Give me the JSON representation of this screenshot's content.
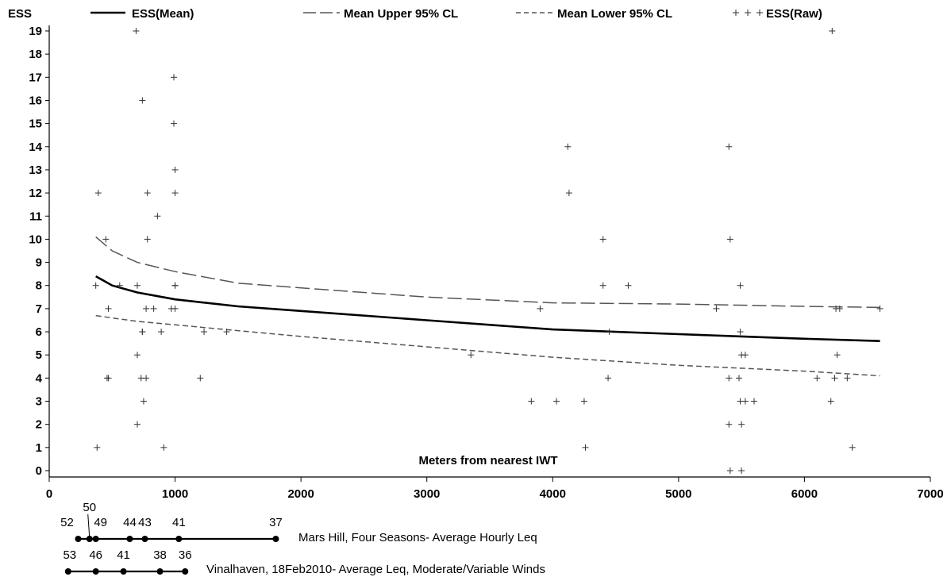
{
  "chart_data": {
    "type": "line",
    "y_axis_title": "ESS",
    "x_axis_label": "Meters from nearest IWT",
    "xlim": [
      0,
      7000
    ],
    "ylim": [
      0,
      19
    ],
    "x_ticks": [
      0,
      1000,
      2000,
      3000,
      4000,
      5000,
      6000,
      7000
    ],
    "y_ticks": [
      0,
      1,
      2,
      3,
      4,
      5,
      6,
      7,
      8,
      9,
      10,
      11,
      12,
      13,
      14,
      15,
      16,
      17,
      18,
      19
    ],
    "grid": false,
    "legend_position": "top",
    "series": [
      {
        "name": "ESS(Mean)",
        "style": "solid",
        "color": "#000000",
        "x": [
          370,
          500,
          700,
          1000,
          1500,
          2000,
          3000,
          4000,
          5000,
          5500,
          6000,
          6600
        ],
        "y": [
          8.4,
          8.0,
          7.7,
          7.4,
          7.1,
          6.9,
          6.5,
          6.1,
          5.9,
          5.8,
          5.7,
          5.6
        ]
      },
      {
        "name": "Mean Upper 95% CL",
        "style": "long-dash",
        "color": "#555555",
        "x": [
          370,
          500,
          700,
          1000,
          1500,
          2000,
          3000,
          4000,
          5000,
          6000,
          6600
        ],
        "y": [
          10.1,
          9.5,
          9.0,
          8.6,
          8.1,
          7.9,
          7.5,
          7.25,
          7.2,
          7.1,
          7.05
        ]
      },
      {
        "name": "Mean Lower 95% CL",
        "style": "short-dash",
        "color": "#555555",
        "x": [
          370,
          500,
          700,
          1000,
          1500,
          2000,
          3000,
          4000,
          5000,
          6000,
          6600
        ],
        "y": [
          6.7,
          6.6,
          6.45,
          6.3,
          6.05,
          5.8,
          5.35,
          4.9,
          4.55,
          4.3,
          4.1
        ]
      },
      {
        "name": "ESS(Raw)",
        "style": "points",
        "color": "#333333",
        "points": [
          [
            370,
            8
          ],
          [
            380,
            1
          ],
          [
            390,
            12
          ],
          [
            450,
            10
          ],
          [
            460,
            4
          ],
          [
            470,
            4
          ],
          [
            470,
            7
          ],
          [
            560,
            8
          ],
          [
            690,
            19
          ],
          [
            700,
            8
          ],
          [
            700,
            5
          ],
          [
            700,
            2
          ],
          [
            730,
            4
          ],
          [
            740,
            16
          ],
          [
            740,
            6
          ],
          [
            740,
            6
          ],
          [
            750,
            3
          ],
          [
            770,
            4
          ],
          [
            770,
            7
          ],
          [
            780,
            12
          ],
          [
            780,
            10
          ],
          [
            830,
            7
          ],
          [
            860,
            11
          ],
          [
            890,
            6
          ],
          [
            910,
            1
          ],
          [
            970,
            7
          ],
          [
            990,
            17
          ],
          [
            990,
            15
          ],
          [
            1000,
            12
          ],
          [
            1000,
            13
          ],
          [
            1000,
            8
          ],
          [
            1000,
            8
          ],
          [
            1000,
            7
          ],
          [
            1200,
            4
          ],
          [
            1230,
            6
          ],
          [
            1410,
            6
          ],
          [
            3350,
            5
          ],
          [
            3830,
            3
          ],
          [
            3900,
            7
          ],
          [
            4030,
            3
          ],
          [
            4120,
            14
          ],
          [
            4130,
            12
          ],
          [
            4250,
            3
          ],
          [
            4260,
            1
          ],
          [
            4400,
            10
          ],
          [
            4400,
            8
          ],
          [
            4440,
            4
          ],
          [
            4450,
            6
          ],
          [
            4600,
            8
          ],
          [
            5300,
            7
          ],
          [
            5400,
            14
          ],
          [
            5410,
            10
          ],
          [
            5400,
            4
          ],
          [
            5400,
            2
          ],
          [
            5410,
            0
          ],
          [
            5480,
            4
          ],
          [
            5490,
            8
          ],
          [
            5490,
            6
          ],
          [
            5490,
            3
          ],
          [
            5500,
            0
          ],
          [
            5500,
            2
          ],
          [
            5500,
            5
          ],
          [
            5530,
            5
          ],
          [
            5530,
            3
          ],
          [
            5600,
            3
          ],
          [
            6100,
            4
          ],
          [
            6210,
            3
          ],
          [
            6220,
            19
          ],
          [
            6240,
            4
          ],
          [
            6250,
            7
          ],
          [
            6260,
            5
          ],
          [
            6280,
            7
          ],
          [
            6340,
            4
          ],
          [
            6380,
            1
          ],
          [
            6600,
            7
          ]
        ]
      }
    ],
    "reference_scales": [
      {
        "label": "Mars Hill, Four Seasons- Average Hourly Leq",
        "points": [
          {
            "x": 230,
            "value": "52"
          },
          {
            "x": 320,
            "value": "50"
          },
          {
            "x": 370,
            "value": "49"
          },
          {
            "x": 640,
            "value": "44"
          },
          {
            "x": 760,
            "value": "43"
          },
          {
            "x": 1030,
            "value": "41"
          },
          {
            "x": 1800,
            "value": "37"
          }
        ]
      },
      {
        "label": "Vinalhaven, 18Feb2010- Average Leq, Moderate/Variable Winds",
        "points": [
          {
            "x": 150,
            "value": "53"
          },
          {
            "x": 370,
            "value": "46"
          },
          {
            "x": 590,
            "value": "41"
          },
          {
            "x": 880,
            "value": "38"
          },
          {
            "x": 1080,
            "value": "36"
          }
        ]
      }
    ]
  }
}
